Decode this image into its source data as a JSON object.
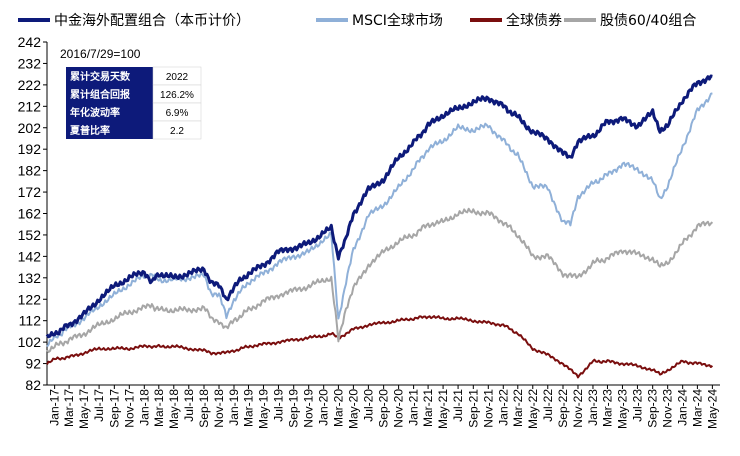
{
  "chart_data": {
    "type": "line",
    "base_note": "2016/7/29=100",
    "ylim": [
      82,
      242
    ],
    "yticks": [
      82,
      92,
      102,
      112,
      122,
      132,
      142,
      152,
      162,
      172,
      182,
      192,
      202,
      212,
      222,
      232,
      242
    ],
    "xticks": [
      "Jan-17",
      "Mar-17",
      "May-17",
      "Jul-17",
      "Sep-17",
      "Nov-17",
      "Jan-18",
      "Mar-18",
      "May-18",
      "Jul-18",
      "Sep-18",
      "Nov-18",
      "Jan-19",
      "Mar-19",
      "May-19",
      "Jul-19",
      "Sep-19",
      "Nov-19",
      "Jan-20",
      "Mar-20",
      "May-20",
      "Jul-20",
      "Sep-20",
      "Nov-20",
      "Jan-21",
      "Mar-21",
      "May-21",
      "Jul-21",
      "Sep-21",
      "Nov-21",
      "Jan-22",
      "Mar-22",
      "May-22",
      "Jul-22",
      "Sep-22",
      "Nov-22",
      "Jan-23",
      "Mar-23",
      "May-23",
      "Jul-23",
      "Sep-23",
      "Nov-23",
      "Jan-24",
      "Mar-24",
      "May-24"
    ],
    "legend_position": "top",
    "grid": false,
    "x": [
      "2016-12",
      "2017-01",
      "2017-03",
      "2017-05",
      "2017-07",
      "2017-09",
      "2017-11",
      "2018-01",
      "2018-02",
      "2018-03",
      "2018-05",
      "2018-07",
      "2018-09",
      "2018-10",
      "2018-11",
      "2018-12",
      "2019-01",
      "2019-03",
      "2019-05",
      "2019-07",
      "2019-09",
      "2019-11",
      "2020-01",
      "2020-02",
      "2020-03",
      "2020-04",
      "2020-05",
      "2020-07",
      "2020-09",
      "2020-11",
      "2021-01",
      "2021-03",
      "2021-05",
      "2021-07",
      "2021-09",
      "2021-11",
      "2022-01",
      "2022-03",
      "2022-05",
      "2022-07",
      "2022-09",
      "2022-10",
      "2022-11",
      "2023-01",
      "2023-03",
      "2023-05",
      "2023-07",
      "2023-09",
      "2023-10",
      "2023-11",
      "2024-01",
      "2024-03",
      "2024-05"
    ],
    "series": [
      {
        "name": "中金海外配置组合（本币计价）",
        "color": "#0d1a7a",
        "width": 3,
        "values": [
          104,
          106,
          110,
          115,
          122,
          128,
          132,
          135,
          130,
          134,
          132,
          134,
          136,
          130,
          128,
          122,
          128,
          134,
          138,
          144,
          146,
          148,
          153,
          155,
          142,
          150,
          162,
          173,
          178,
          188,
          195,
          203,
          208,
          211,
          214,
          216,
          212,
          207,
          200,
          197,
          190,
          188,
          196,
          198,
          205,
          206,
          203,
          209,
          201,
          203,
          215,
          223,
          226
        ]
      },
      {
        "name": "MSCI全球市场",
        "color": "#8fb0d8",
        "width": 2,
        "values": [
          100,
          104,
          109,
          113,
          119,
          124,
          129,
          133,
          134,
          131,
          131,
          132,
          133,
          125,
          124,
          114,
          122,
          130,
          134,
          139,
          142,
          144,
          150,
          152,
          113,
          130,
          145,
          161,
          166,
          174,
          183,
          192,
          196,
          202,
          201,
          203,
          196,
          189,
          175,
          174,
          158,
          157,
          170,
          176,
          180,
          185,
          183,
          177,
          169,
          175,
          193,
          210,
          218
        ]
      },
      {
        "name": "全球债券",
        "color": "#7a0e0e",
        "width": 2,
        "values": [
          92,
          94,
          95,
          97,
          99,
          99,
          99,
          100,
          100,
          100,
          100,
          99,
          98,
          97,
          97,
          97,
          98,
          100,
          101,
          102,
          103,
          104,
          105,
          106,
          104,
          106,
          108,
          110,
          111,
          112,
          113,
          114,
          113,
          113,
          112,
          111,
          110,
          106,
          99,
          96,
          92,
          89,
          86,
          93,
          93,
          92,
          91,
          89,
          87,
          89,
          93,
          92,
          91
        ]
      },
      {
        "name": "股债60/40组合",
        "color": "#a6a6a6",
        "width": 2,
        "values": [
          98,
          100,
          103,
          106,
          110,
          113,
          116,
          118,
          119,
          117,
          117,
          117,
          118,
          113,
          112,
          108,
          112,
          117,
          121,
          124,
          126,
          128,
          131,
          132,
          103,
          118,
          127,
          138,
          144,
          149,
          152,
          157,
          158,
          162,
          163,
          162,
          158,
          152,
          142,
          142,
          134,
          133,
          132,
          139,
          141,
          145,
          143,
          141,
          137,
          139,
          148,
          156,
          158
        ]
      }
    ],
    "stats_box": {
      "rows": [
        {
          "label": "累计交易天数",
          "value": "2022"
        },
        {
          "label": "累计组合回报",
          "value": "126.2%"
        },
        {
          "label": "年化波动率",
          "value": "6.9%"
        },
        {
          "label": "夏普比率",
          "value": "2.2"
        }
      ],
      "label_bg": "#0d1a7a"
    }
  }
}
